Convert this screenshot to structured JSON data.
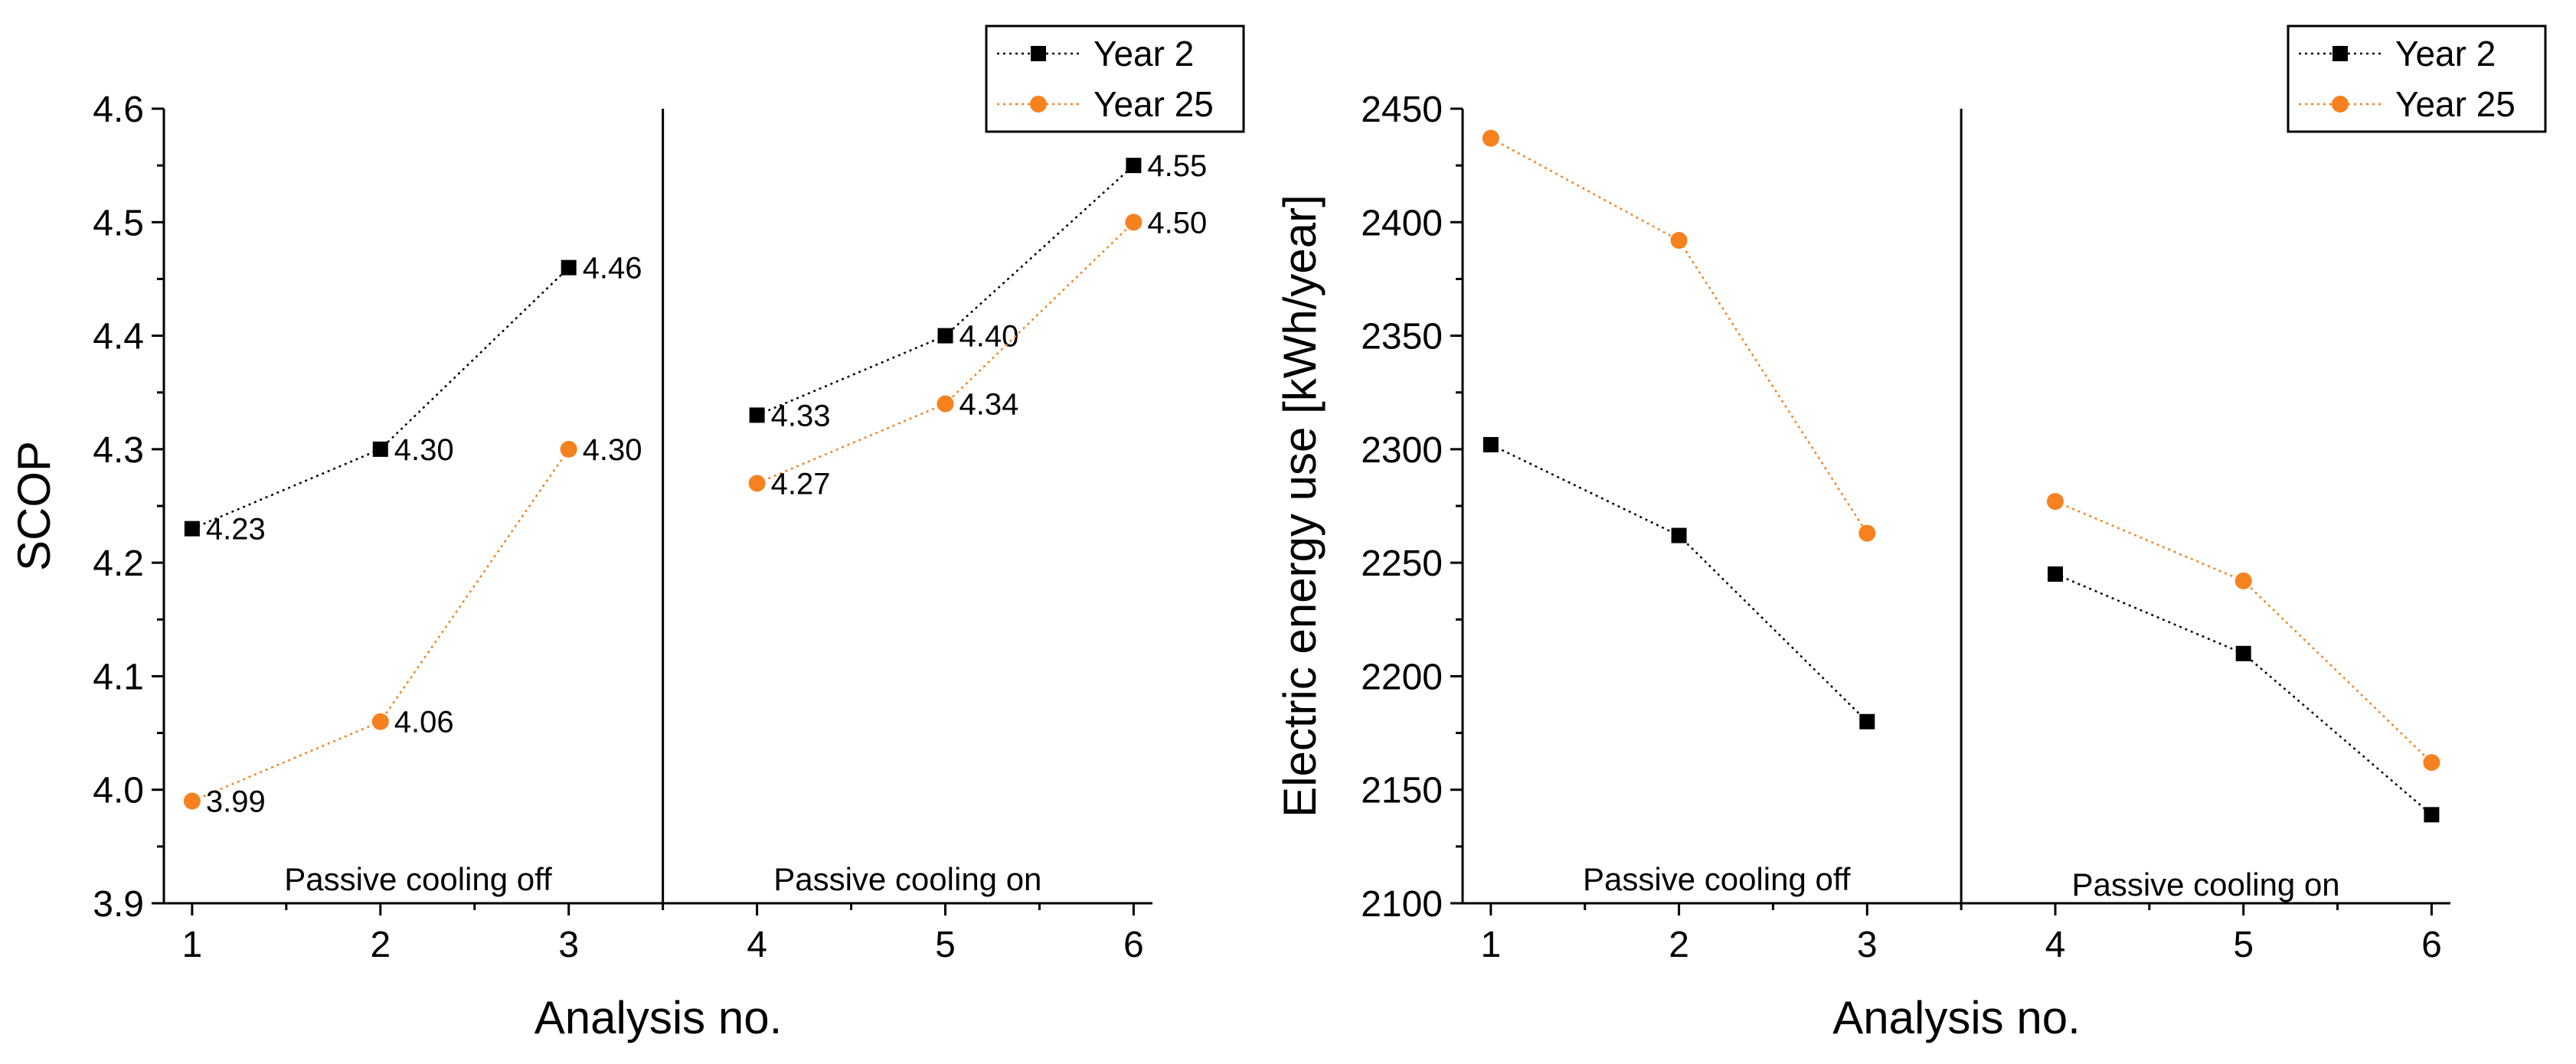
{
  "colors": {
    "year2": "#000000",
    "year25": "#f5821f",
    "axis": "#000000"
  },
  "chart_data": [
    {
      "type": "line",
      "xlabel": "Analysis no.",
      "ylabel": "SCOP",
      "x": [
        1,
        2,
        3,
        4,
        5,
        6
      ],
      "xlim": [
        0.85,
        6.1
      ],
      "ylim": [
        3.9,
        4.6
      ],
      "yticks": [
        3.9,
        4.0,
        4.1,
        4.2,
        4.3,
        4.4,
        4.5,
        4.6
      ],
      "ytick_labels": [
        "3.9",
        "4.0",
        "4.1",
        "4.2",
        "4.3",
        "4.4",
        "4.5",
        "4.6"
      ],
      "xticks": [
        1,
        2,
        3,
        4,
        5,
        6
      ],
      "xtick_labels": [
        "1",
        "2",
        "3",
        "4",
        "5",
        "6"
      ],
      "divider_x": 3.5,
      "regions": [
        "Passive cooling off",
        "Passive cooling on"
      ],
      "legend": {
        "position": "top-right",
        "entries": [
          "Year 2",
          "Year 25"
        ]
      },
      "series": [
        {
          "name": "Year 2",
          "marker": "square",
          "color": "#000000",
          "values": [
            4.23,
            4.3,
            4.46,
            4.33,
            4.4,
            4.55
          ],
          "labels": [
            "4.23",
            "4.30",
            "4.46",
            "4.33",
            "4.40",
            "4.55"
          ]
        },
        {
          "name": "Year 25",
          "marker": "circle",
          "color": "#f5821f",
          "values": [
            3.99,
            4.06,
            4.3,
            4.27,
            4.34,
            4.5
          ],
          "labels": [
            "3.99",
            "4.06",
            "4.30",
            "4.27",
            "4.34",
            "4.50"
          ]
        }
      ]
    },
    {
      "type": "line",
      "xlabel": "Analysis no.",
      "ylabel": "Electric energy use [kWh/year]",
      "x": [
        1,
        2,
        3,
        4,
        5,
        6
      ],
      "xlim": [
        0.85,
        6.1
      ],
      "ylim": [
        2100,
        2450
      ],
      "yticks": [
        2100,
        2150,
        2200,
        2250,
        2300,
        2350,
        2400,
        2450
      ],
      "ytick_labels": [
        "2100",
        "2150",
        "2200",
        "2250",
        "2300",
        "2350",
        "2400",
        "2450"
      ],
      "xticks": [
        1,
        2,
        3,
        4,
        5,
        6
      ],
      "xtick_labels": [
        "1",
        "2",
        "3",
        "4",
        "5",
        "6"
      ],
      "divider_x": 3.5,
      "regions": [
        "Passive cooling off",
        "Passive cooling on"
      ],
      "legend": {
        "position": "top-right",
        "entries": [
          "Year 2",
          "Year 25"
        ]
      },
      "series": [
        {
          "name": "Year 2",
          "marker": "square",
          "color": "#000000",
          "values": [
            2302,
            2262,
            2180,
            2245,
            2210,
            2139
          ]
        },
        {
          "name": "Year 25",
          "marker": "circle",
          "color": "#f5821f",
          "values": [
            2437,
            2392,
            2263,
            2277,
            2242,
            2162
          ]
        }
      ]
    }
  ]
}
